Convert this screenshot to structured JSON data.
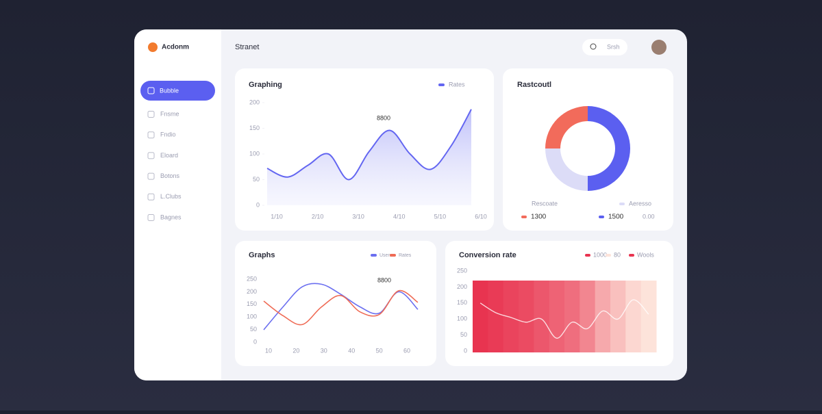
{
  "sidebar": {
    "brand": "Acdonm",
    "active_item": "Bubble",
    "items": [
      "Fnsme",
      "Fndio",
      "Eloard",
      "Botons",
      "L.Clubs",
      "Bagnes"
    ]
  },
  "header": {
    "title": "Stranet",
    "search": "Srsh"
  },
  "chart_data": [
    {
      "type": "area",
      "title": "Graphing",
      "annotation": "8800",
      "categories": [
        "1/10",
        null,
        "2/10",
        null,
        "3/10",
        null,
        "4/10",
        null,
        "5/10",
        null,
        "6/10"
      ],
      "series": [
        {
          "name": "Rates",
          "color": "#6366f1",
          "values": [
            72,
            55,
            78,
            100,
            50,
            105,
            146,
            100,
            70,
            115,
            187
          ]
        }
      ],
      "ylim": [
        0,
        200
      ],
      "yticks": [
        0,
        50,
        100,
        150,
        200
      ]
    },
    {
      "type": "donut",
      "title": "Rastcoutl",
      "annotations": [
        "Rescoate",
        "0.00"
      ],
      "categories": [
        "1500",
        "Aeresso",
        "1300"
      ],
      "values": [
        50,
        25,
        25
      ],
      "colors": [
        "#5b5ff0",
        "#dcdcf7",
        "#f26b5b"
      ]
    },
    {
      "type": "line",
      "title": "Graphs",
      "annotation": "8800",
      "categories": [
        "10",
        "20",
        "30",
        "40",
        "50",
        "60"
      ],
      "x": [
        0,
        1,
        2,
        3,
        4,
        5,
        6,
        7,
        8
      ],
      "xlim": [
        0,
        8
      ],
      "series": [
        {
          "name": "Users",
          "color": "#6b6ff0",
          "values": [
            49,
            140,
            220,
            230,
            190,
            140,
            115,
            200,
            130
          ]
        },
        {
          "name": "Rates",
          "color": "#ef6b55",
          "values": [
            163,
            105,
            70,
            140,
            185,
            120,
            110,
            204,
            158
          ]
        }
      ],
      "ylim": [
        0,
        250
      ],
      "yticks": [
        0,
        50,
        100,
        150,
        200,
        250
      ]
    },
    {
      "type": "heatmap",
      "title": "Conversion rate",
      "legend": [
        "1000",
        "80",
        "Wools"
      ],
      "values": [
        95,
        92,
        88,
        85,
        80,
        75,
        70,
        60,
        45,
        35,
        25,
        20
      ],
      "line": [
        150,
        120,
        105,
        90,
        100,
        40,
        90,
        70,
        125,
        100,
        160,
        115
      ],
      "colors": [
        "#e83450",
        "#fde3da"
      ],
      "ylim": [
        0,
        250
      ],
      "yticks": [
        0,
        50,
        100,
        150,
        200,
        250
      ]
    }
  ]
}
